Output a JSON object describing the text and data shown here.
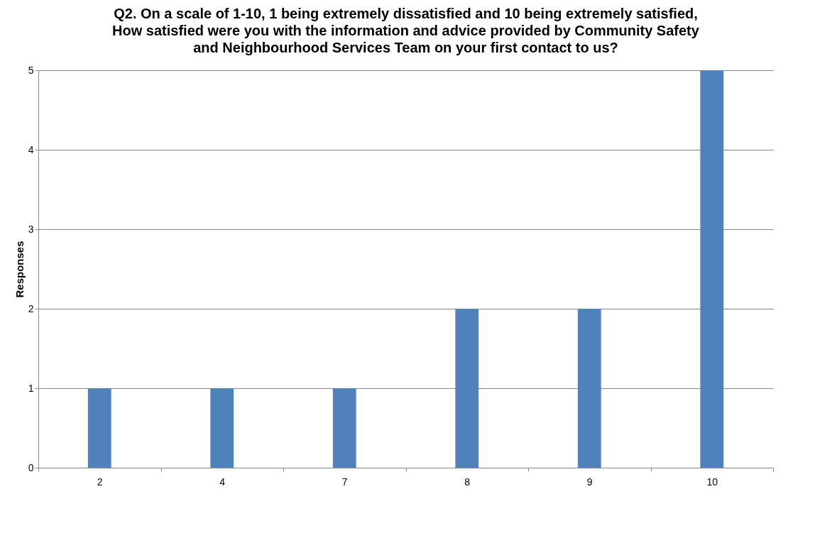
{
  "chart_data": {
    "type": "bar",
    "title": "Q2. On a scale of 1-10, 1 being extremely dissatisfied and 10 being extremely satisfied,  How satisfied were you with the information and advice provided by Community Safety and Neighbourhood Services Team on your first contact to us?",
    "ylabel": "Responses",
    "categories": [
      "2",
      "4",
      "7",
      "8",
      "9",
      "10"
    ],
    "values": [
      1,
      1,
      1,
      2,
      2,
      5
    ],
    "color": "#4f81bd",
    "ylim": [
      0,
      5
    ],
    "yticks": [
      0,
      1,
      2,
      3,
      4,
      5
    ],
    "grid": "y",
    "legend": false
  }
}
